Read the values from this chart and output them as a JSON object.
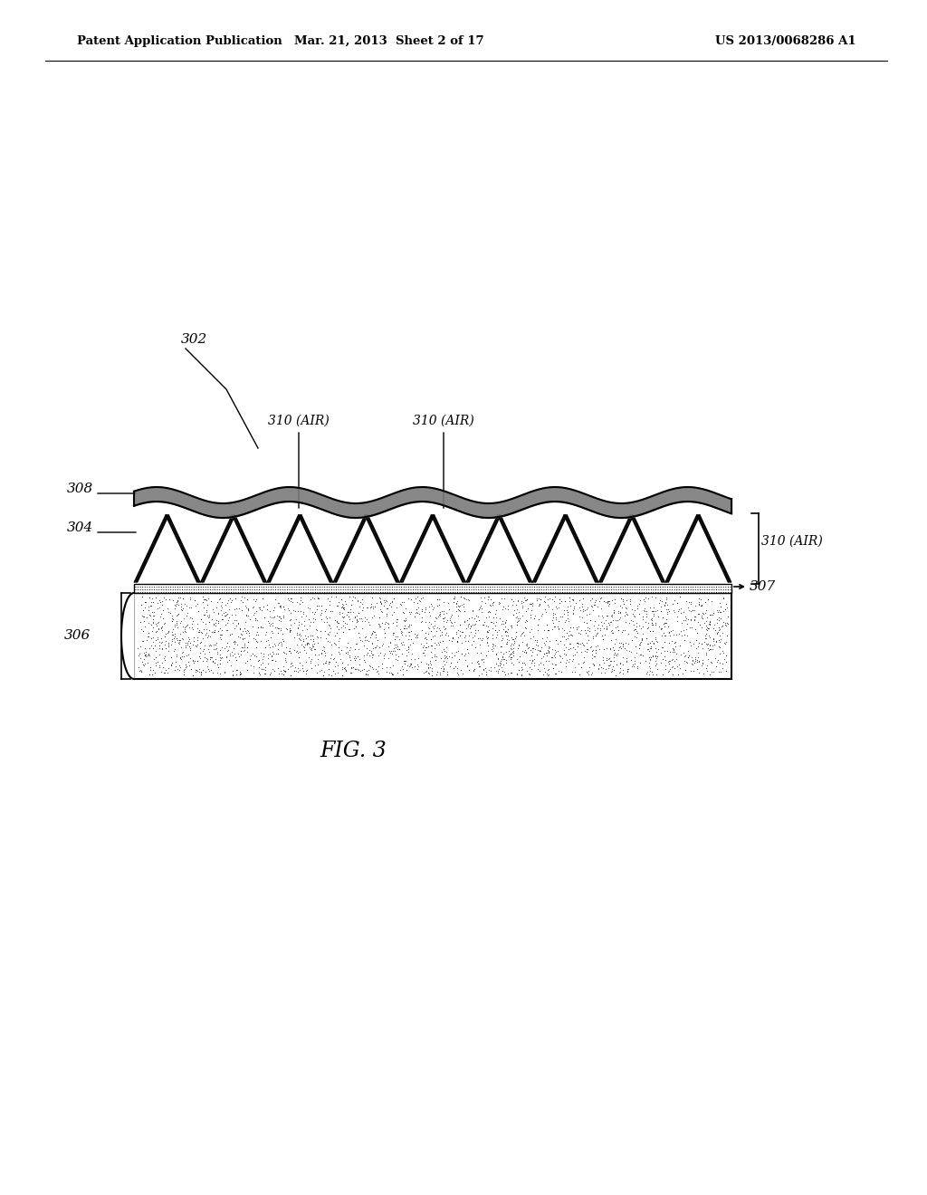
{
  "background_color": "#ffffff",
  "header_left": "Patent Application Publication",
  "header_mid": "Mar. 21, 2013  Sheet 2 of 17",
  "header_right": "US 2013/0068286 A1",
  "fig_label": "FIG. 3",
  "label_302": "302",
  "label_304": "304",
  "label_306": "306",
  "label_307": "307",
  "label_308": "308",
  "label_310_air_1": "310 (AIR)",
  "label_310_air_2": "310 (AIR)",
  "label_310_air_3": "310 (AIR)"
}
